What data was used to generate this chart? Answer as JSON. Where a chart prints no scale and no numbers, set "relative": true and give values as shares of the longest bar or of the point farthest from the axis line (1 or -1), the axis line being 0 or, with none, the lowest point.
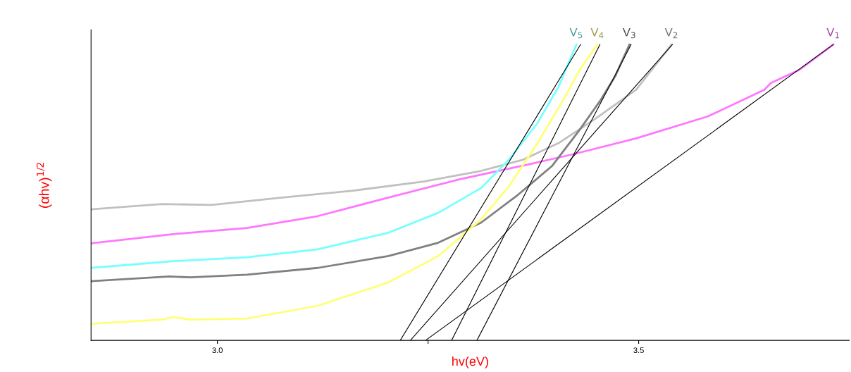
{
  "chart_data": {
    "type": "line",
    "xlabel": "hv(eV)",
    "ylabel": "(αhv)$^{1/2}$",
    "relative": true,
    "xlim": [
      2.85,
      3.75
    ],
    "xticks": [
      {
        "value": 3.0,
        "label": "3.0"
      },
      {
        "value": 3.25,
        "label": null
      },
      {
        "value": 3.5,
        "label": "3.5"
      }
    ],
    "grid": false,
    "legend": false,
    "series": [
      {
        "name": "V$_{2}$",
        "color": "#c0c0c0",
        "x": [
          2.85,
          2.934,
          2.993,
          3.077,
          3.161,
          3.245,
          3.313,
          3.363,
          3.405,
          3.447,
          3.497,
          3.539
        ],
        "values": [
          0.443,
          0.461,
          0.458,
          0.483,
          0.506,
          0.537,
          0.573,
          0.611,
          0.667,
          0.746,
          0.847,
          1.0
        ]
      },
      {
        "name": "V$_{1}$",
        "color": "#ff77ff",
        "x": [
          2.85,
          2.951,
          3.035,
          3.119,
          3.203,
          3.287,
          3.371,
          3.422,
          3.497,
          3.582,
          3.649,
          3.657,
          3.691,
          3.731
        ],
        "values": [
          0.328,
          0.36,
          0.38,
          0.42,
          0.483,
          0.544,
          0.596,
          0.629,
          0.683,
          0.757,
          0.847,
          0.87,
          0.915,
          1.0
        ]
      },
      {
        "name": "V$_{5}$",
        "color": "#77ffff",
        "x": [
          2.85,
          2.943,
          3.035,
          3.119,
          3.203,
          3.262,
          3.313,
          3.346,
          3.38,
          3.405,
          3.426
        ],
        "values": [
          0.245,
          0.267,
          0.281,
          0.308,
          0.364,
          0.431,
          0.515,
          0.611,
          0.735,
          0.858,
          1.0
        ]
      },
      {
        "name": "V$_{3}$",
        "color": "#808080",
        "x": [
          2.85,
          2.943,
          2.968,
          3.035,
          3.119,
          3.203,
          3.262,
          3.313,
          3.355,
          3.397,
          3.43,
          3.455,
          3.472,
          3.489
        ],
        "values": [
          0.2,
          0.216,
          0.213,
          0.222,
          0.245,
          0.285,
          0.33,
          0.398,
          0.488,
          0.589,
          0.712,
          0.813,
          0.892,
          1.0
        ]
      },
      {
        "name": "V$_{4}$",
        "color": "#ffff77",
        "x": [
          2.85,
          2.934,
          2.947,
          2.968,
          3.035,
          3.119,
          3.203,
          3.262,
          3.313,
          3.346,
          3.38,
          3.413,
          3.43,
          3.451
        ],
        "values": [
          0.056,
          0.07,
          0.079,
          0.07,
          0.074,
          0.117,
          0.196,
          0.285,
          0.409,
          0.521,
          0.667,
          0.825,
          0.915,
          1.0
        ]
      },
      {
        "color": "#000000",
        "x": [
          3.217,
          3.431
        ],
        "values": [
          0.0,
          1.0
        ]
      },
      {
        "color": "#000000",
        "x": [
          3.278,
          3.454
        ],
        "values": [
          0.0,
          1.0
        ]
      },
      {
        "color": "#000000",
        "x": [
          3.308,
          3.491
        ],
        "values": [
          0.0,
          1.0
        ]
      },
      {
        "color": "#000000",
        "x": [
          3.229,
          3.54
        ],
        "values": [
          0.0,
          1.0
        ]
      },
      {
        "color": "#000000",
        "x": [
          3.247,
          3.731
        ],
        "values": [
          0.0,
          1.0
        ]
      }
    ]
  }
}
